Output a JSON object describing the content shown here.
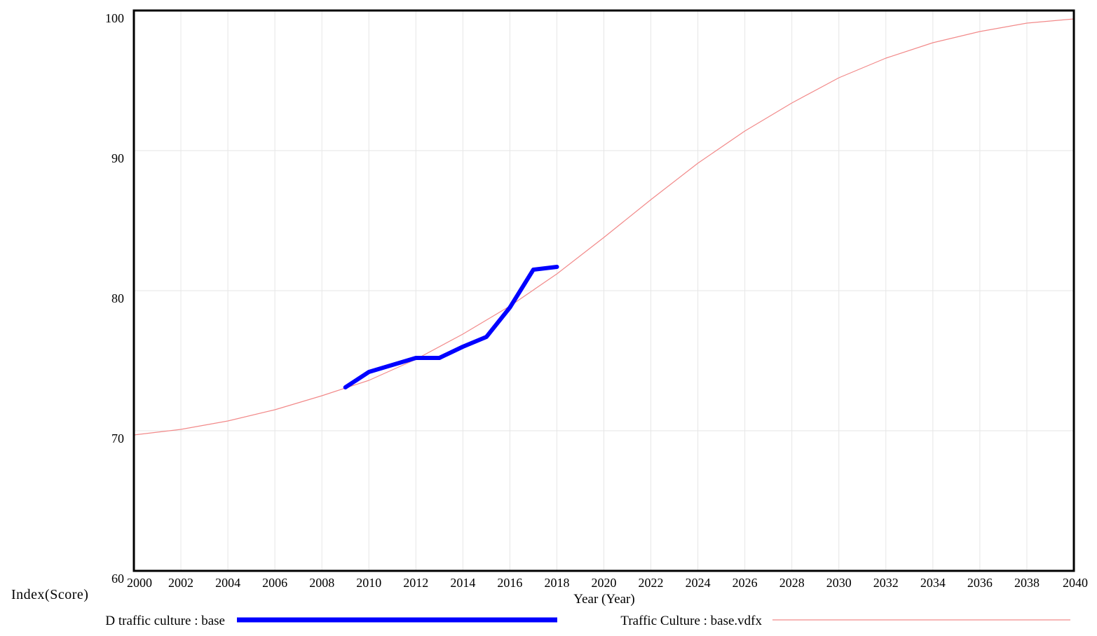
{
  "chart_data": {
    "type": "line",
    "title": "",
    "xlabel": "Year (Year)",
    "ylabel": "Index(Score)",
    "xlim": [
      2000,
      2040
    ],
    "ylim": [
      60,
      100
    ],
    "x_ticks": [
      2000,
      2002,
      2004,
      2006,
      2008,
      2010,
      2012,
      2014,
      2016,
      2018,
      2020,
      2022,
      2024,
      2026,
      2028,
      2030,
      2032,
      2034,
      2036,
      2038,
      2040
    ],
    "y_ticks": [
      60,
      70,
      80,
      90,
      100
    ],
    "grid": true,
    "legend_position": "bottom",
    "series": [
      {
        "name": "D traffic culture : base",
        "color": "#0000ff",
        "x": [
          2009,
          2010,
          2011,
          2012,
          2013,
          2014,
          2015,
          2016,
          2017,
          2018
        ],
        "y": [
          73.1,
          74.2,
          74.7,
          75.2,
          75.2,
          76.0,
          76.7,
          78.8,
          81.5,
          81.7
        ]
      },
      {
        "name": "Traffic Culture : base.vdfx",
        "color": "#f28a8a",
        "x": [
          2000,
          2002,
          2004,
          2006,
          2008,
          2010,
          2012,
          2014,
          2016,
          2018,
          2020,
          2022,
          2024,
          2026,
          2028,
          2030,
          2032,
          2034,
          2036,
          2038,
          2040
        ],
        "y": [
          69.7,
          70.1,
          70.7,
          71.5,
          72.5,
          73.6,
          75.1,
          76.9,
          78.9,
          81.2,
          83.8,
          86.5,
          89.1,
          91.4,
          93.4,
          95.2,
          96.6,
          97.7,
          98.5,
          99.1,
          99.4
        ]
      }
    ]
  }
}
